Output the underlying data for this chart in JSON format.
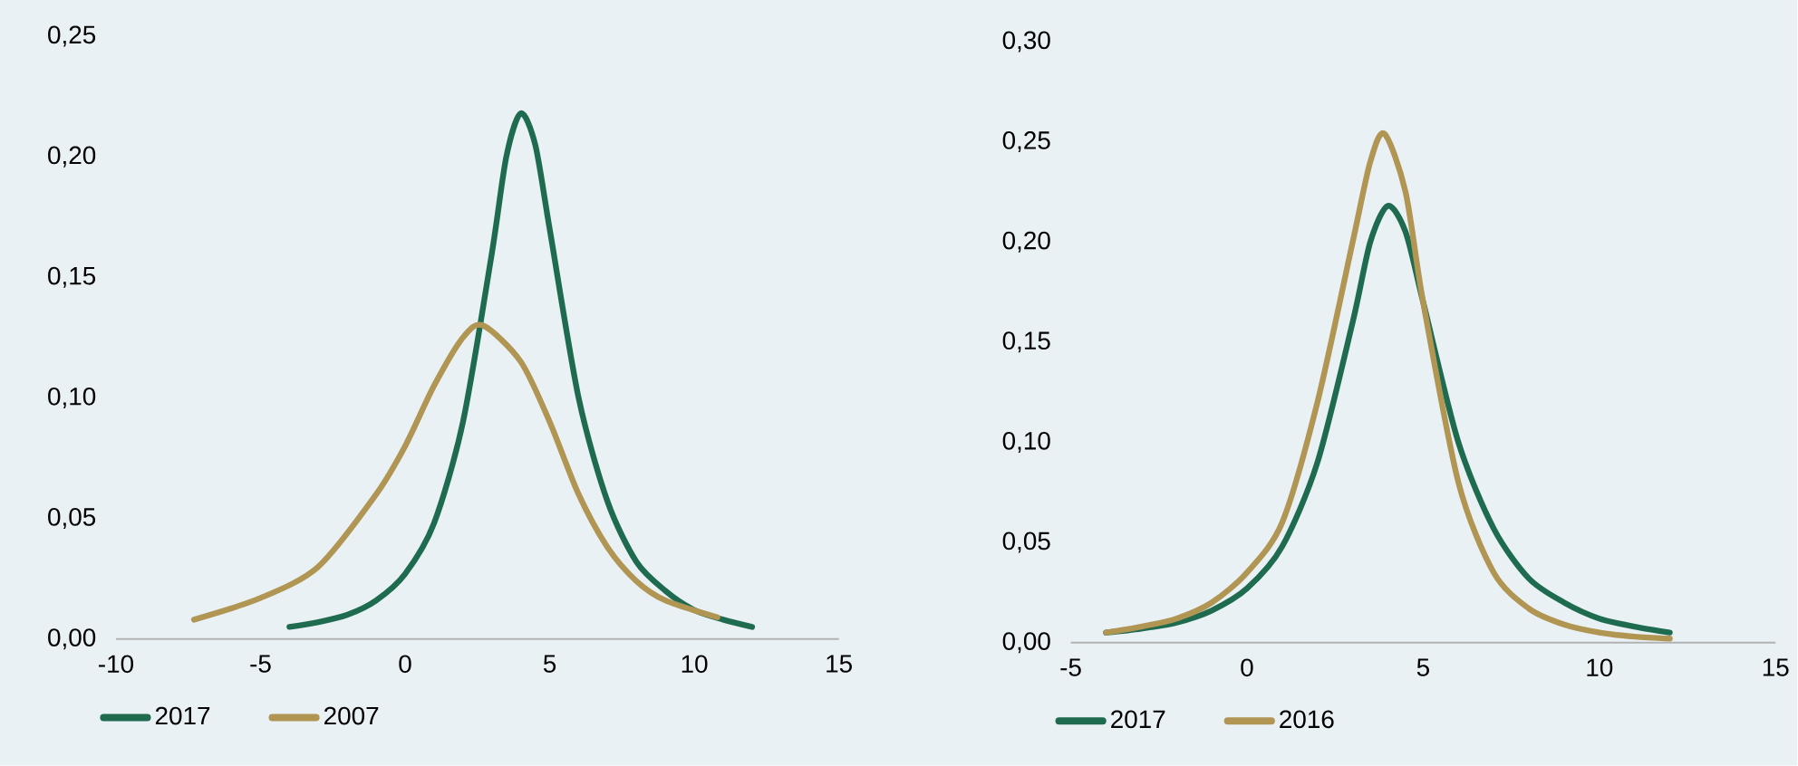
{
  "chart_data": [
    {
      "type": "line",
      "xlim": [
        -10,
        15
      ],
      "ylim": [
        0,
        0.25
      ],
      "xticks": [
        -10,
        -5,
        0,
        5,
        10,
        15
      ],
      "yticks": [
        {
          "value": 0,
          "label": "0,00"
        },
        {
          "value": 0.05,
          "label": "0,05"
        },
        {
          "value": 0.1,
          "label": "0,10"
        },
        {
          "value": 0.15,
          "label": "0,15"
        },
        {
          "value": 0.2,
          "label": "0,20"
        },
        {
          "value": 0.25,
          "label": "0,25"
        }
      ],
      "legend": "bottom",
      "line_style": "solid",
      "series": [
        {
          "name": "2017",
          "color": "#1f6b4f",
          "x": [
            -4,
            -3,
            -2,
            -1,
            0,
            1,
            2,
            3,
            3.5,
            4,
            4.5,
            5,
            6,
            7,
            8,
            9,
            10,
            11,
            12
          ],
          "values": [
            0.005,
            0.007,
            0.01,
            0.016,
            0.027,
            0.048,
            0.09,
            0.16,
            0.2,
            0.218,
            0.205,
            0.17,
            0.1,
            0.057,
            0.032,
            0.02,
            0.012,
            0.008,
            0.005
          ]
        },
        {
          "name": "2007",
          "color": "#b09553",
          "x": [
            -7.3,
            -5,
            -3,
            -1,
            0,
            1,
            2,
            2.7,
            4,
            5,
            6,
            7,
            8,
            9,
            10.8
          ],
          "values": [
            0.008,
            0.017,
            0.03,
            0.06,
            0.08,
            0.105,
            0.125,
            0.13,
            0.115,
            0.09,
            0.06,
            0.038,
            0.024,
            0.016,
            0.009
          ]
        }
      ]
    },
    {
      "type": "line",
      "xlim": [
        -5,
        15
      ],
      "ylim": [
        0,
        0.3
      ],
      "xticks": [
        -5,
        0,
        5,
        10,
        15
      ],
      "yticks": [
        {
          "value": 0,
          "label": "0,00"
        },
        {
          "value": 0.05,
          "label": "0,05"
        },
        {
          "value": 0.1,
          "label": "0,10"
        },
        {
          "value": 0.15,
          "label": "0,15"
        },
        {
          "value": 0.2,
          "label": "0,20"
        },
        {
          "value": 0.25,
          "label": "0,25"
        },
        {
          "value": 0.3,
          "label": "0,30"
        }
      ],
      "legend": "bottom",
      "line_style": "solid",
      "series": [
        {
          "name": "2017",
          "color": "#1f6b4f",
          "x": [
            -4,
            -3,
            -2,
            -1,
            0,
            1,
            2,
            3,
            3.5,
            4,
            4.5,
            5,
            6,
            7,
            8,
            9,
            10,
            11,
            12
          ],
          "values": [
            0.005,
            0.007,
            0.01,
            0.016,
            0.027,
            0.048,
            0.09,
            0.16,
            0.2,
            0.218,
            0.205,
            0.17,
            0.1,
            0.057,
            0.032,
            0.02,
            0.012,
            0.008,
            0.005
          ]
        },
        {
          "name": "2016",
          "color": "#b09553",
          "x": [
            -4,
            -3,
            -2,
            -1,
            0,
            1,
            2,
            3,
            3.5,
            3.9,
            4.5,
            5,
            6,
            7,
            8,
            9,
            10,
            11,
            12
          ],
          "values": [
            0.005,
            0.008,
            0.012,
            0.02,
            0.035,
            0.06,
            0.12,
            0.2,
            0.24,
            0.254,
            0.225,
            0.17,
            0.08,
            0.035,
            0.017,
            0.009,
            0.005,
            0.003,
            0.002
          ]
        }
      ]
    }
  ]
}
